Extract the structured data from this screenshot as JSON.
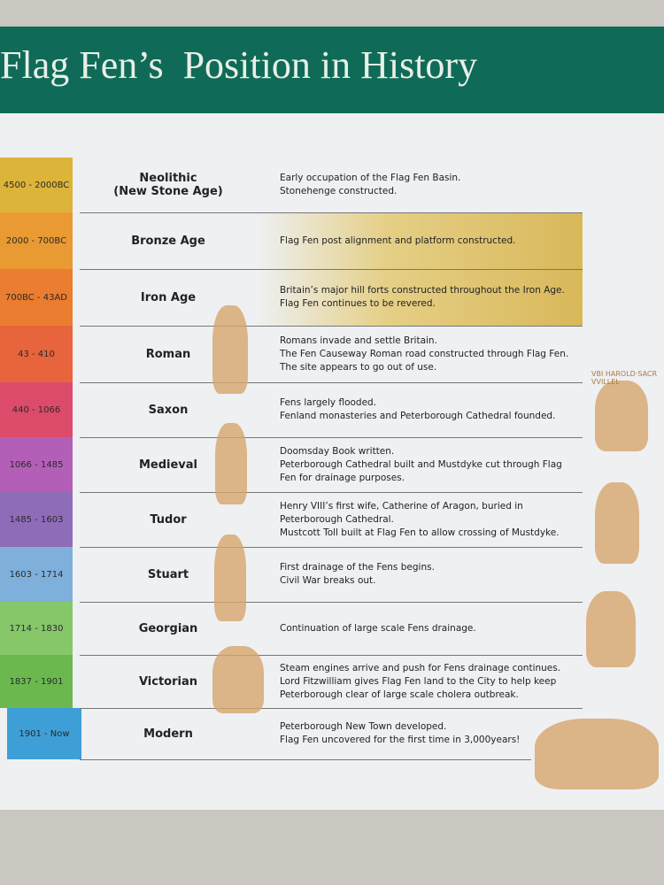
{
  "header": {
    "title": "Flag Fen’s  Position in History"
  },
  "rows": [
    {
      "date": "4500 - 2000BC",
      "period": [
        "Neolithic",
        "(New Stone Age)"
      ],
      "events": [
        "Early occupation of the Flag Fen Basin.",
        "Stonehenge constructed."
      ]
    },
    {
      "date": "2000 - 700BC",
      "period": [
        "Bronze Age"
      ],
      "events": [
        "Flag Fen post alignment and platform constructed."
      ]
    },
    {
      "date": "700BC - 43AD",
      "period": [
        "Iron Age"
      ],
      "events": [
        "Britain’s major hill forts constructed throughout the Iron Age.",
        "Flag Fen continues to be revered."
      ]
    },
    {
      "date": "43 - 410",
      "period": [
        "Roman"
      ],
      "events": [
        "Romans invade and settle Britain.",
        "The Fen Causeway Roman road constructed through Flag Fen.",
        "The site appears to go out of use."
      ]
    },
    {
      "date": "440 - 1066",
      "period": [
        "Saxon"
      ],
      "events": [
        "Fens largely flooded.",
        "Fenland monasteries and Peterborough Cathedral founded."
      ]
    },
    {
      "date": "1066 - 1485",
      "period": [
        "Medieval"
      ],
      "events": [
        "Doomsday Book written.",
        "Peterborough Cathedral built and Mustdyke cut through Flag",
        "Fen for drainage purposes."
      ]
    },
    {
      "date": "1485 - 1603",
      "period": [
        "Tudor"
      ],
      "events": [
        "Henry VIII’s first wife, Catherine of Aragon, buried in",
        "Peterborough Cathedral.",
        "Mustcott Toll built at Flag Fen to allow crossing of Mustdyke."
      ]
    },
    {
      "date": "1603 - 1714",
      "period": [
        "Stuart"
      ],
      "events": [
        "First drainage of the Fens begins.",
        "Civil War breaks out."
      ]
    },
    {
      "date": "1714 - 1830",
      "period": [
        "Georgian"
      ],
      "events": [
        "Continuation of large scale Fens drainage."
      ]
    },
    {
      "date": "1837 - 1901",
      "period": [
        "Victorian"
      ],
      "events": [
        "Steam engines arrive and push for Fens drainage continues.",
        "Lord Fitzwilliam gives Flag Fen land to the City to help keep",
        "Peterborough clear of large scale cholera outbreak."
      ]
    },
    {
      "date": "1901 - Now",
      "period": [
        "Modern"
      ],
      "events": [
        "Peterborough New Town developed.",
        "Flag Fen uncovered for the first time in 3,000years!"
      ]
    }
  ],
  "caption": "VBI HAROLD·SACR VVILLEL"
}
